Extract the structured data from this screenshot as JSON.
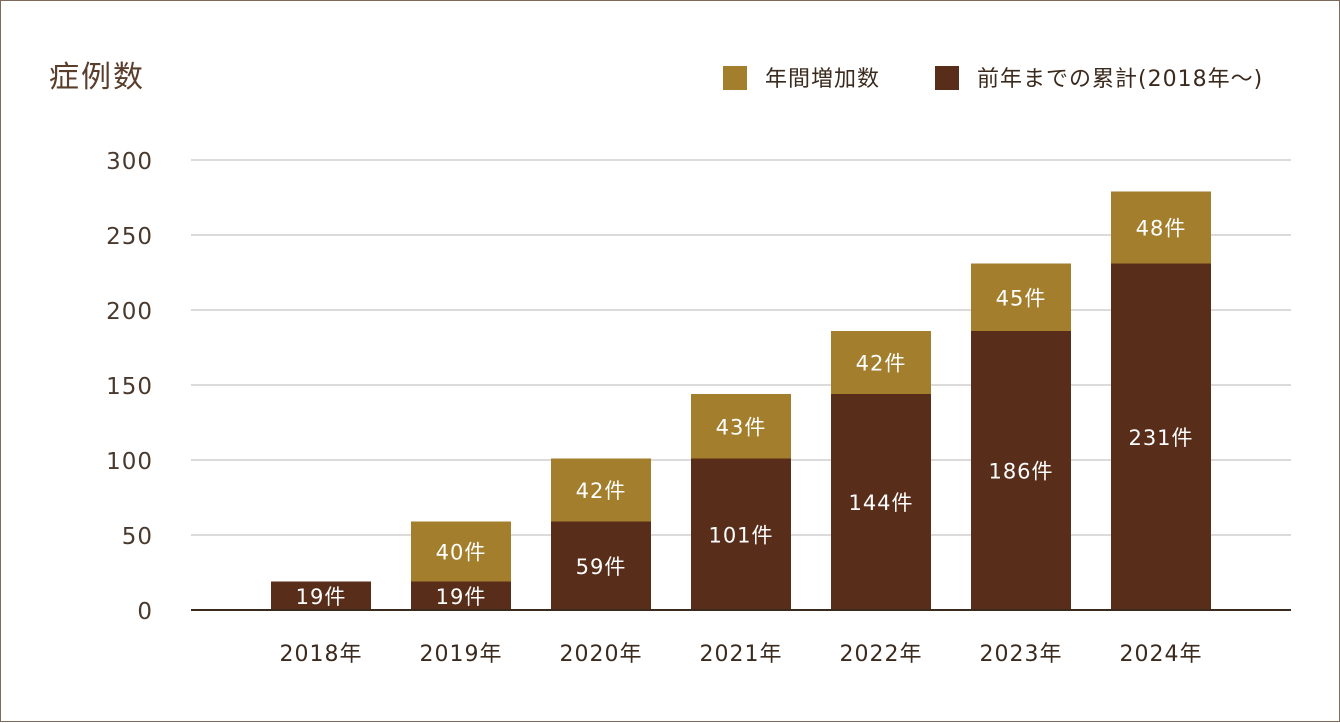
{
  "chart_data": {
    "type": "bar",
    "stacked": true,
    "title": "症例数",
    "categories": [
      "2018年",
      "2019年",
      "2020年",
      "2021年",
      "2022年",
      "2023年",
      "2024年"
    ],
    "series": [
      {
        "name": "前年までの累計(2018年～)",
        "color": "#582e1b",
        "values": [
          19,
          19,
          59,
          101,
          144,
          186,
          231
        ],
        "labels": [
          "19件",
          "19件",
          "59件",
          "101件",
          "144件",
          "186件",
          "231件"
        ]
      },
      {
        "name": "年間増加数",
        "color": "#a37e2c",
        "values": [
          0,
          40,
          42,
          43,
          42,
          45,
          48
        ],
        "labels": [
          "",
          "40件",
          "42件",
          "43件",
          "42件",
          "45件",
          "48件"
        ]
      }
    ],
    "legend_order": [
      1,
      0
    ],
    "yticks": [
      "0",
      "50",
      "100",
      "150",
      "200",
      "250",
      "300"
    ],
    "ylim": [
      0,
      300
    ],
    "grid": true,
    "legend_position": "top-right"
  }
}
